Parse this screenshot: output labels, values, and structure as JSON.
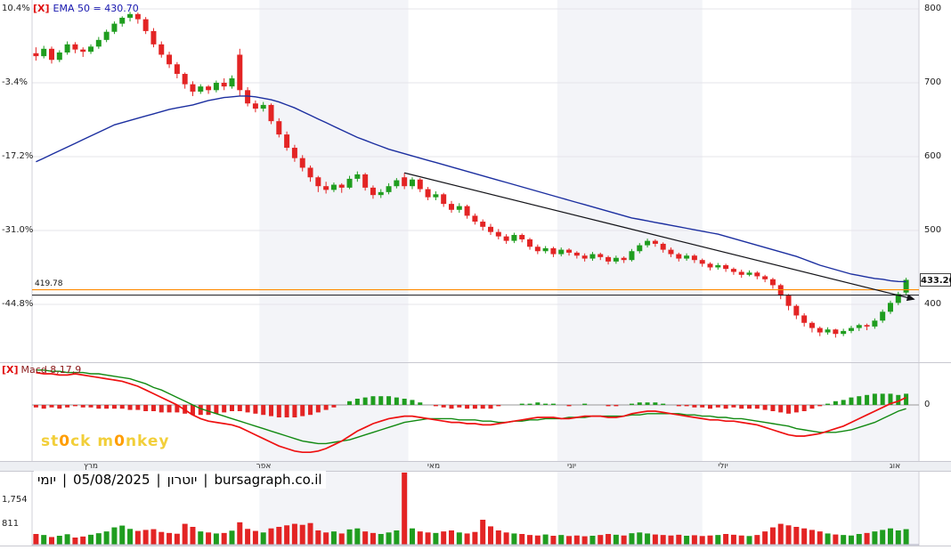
{
  "colors": {
    "up": "#1f9d1f",
    "down": "#e32424",
    "ema": "#1c2fa0",
    "macd_line": "#ee1111",
    "signal_line": "#128a12",
    "hist_pos": "#1f9d1f",
    "hist_neg": "#e32424",
    "orange_line": "#ff8a00",
    "trend_line": "#15151a",
    "stripe": "#f3f4f8",
    "grid": "#e4e4ea"
  },
  "legend": {
    "ema_close": "[X]",
    "macd_close": "[X]"
  },
  "watermark_parts": [
    "st",
    "0",
    "ck m",
    "0",
    "nkey"
  ],
  "info_bar": {
    "segments": [
      "יומי",
      "|",
      "05/08/2025",
      "|",
      "יוטרון",
      "|",
      "bursagraph.co.il"
    ]
  },
  "chart_data": {
    "type": "candlestick",
    "title": "EMA 50 = 430.70",
    "timeframe": "יומי",
    "date": "05/08/2025",
    "source": "bursagraph.co.il",
    "last_price": 433.2,
    "last_price_label": "433.20",
    "ema_label": "EMA 50 = 430.70",
    "ema50_value": 430.7,
    "orange_hline": 419.78,
    "orange_hline_label": "419.78",
    "black_hline": 412.5,
    "trendline": {
      "from_index": 47,
      "from_price": 578,
      "to_index": 112.0,
      "to_price": 407
    },
    "x_axis_months": [
      "מרץ",
      "אפר",
      "מאי",
      "יוני",
      "יולי",
      "אוג"
    ],
    "shaded_bands_idx": [
      [
        29,
        48
      ],
      [
        67,
        85.5
      ],
      [
        104.5,
        113.2
      ]
    ],
    "price_axis": {
      "ticks": [
        800,
        700,
        600,
        500,
        400
      ],
      "tick_labels": [
        "800",
        "700",
        "600",
        "500",
        "400"
      ],
      "pct_labels": [
        "10.4%",
        "-3.4%",
        "-17.2%",
        "-31.0%",
        "-44.8%"
      ],
      "base_close": 724.6
    },
    "candles": [
      [
        740,
        748,
        730,
        736
      ],
      [
        736,
        750,
        733,
        746
      ],
      [
        746,
        749,
        726,
        731
      ],
      [
        731,
        744,
        728,
        741
      ],
      [
        741,
        756,
        738,
        752
      ],
      [
        752,
        755,
        740,
        745
      ],
      [
        745,
        748,
        735,
        742
      ],
      [
        742,
        752,
        739,
        749
      ],
      [
        749,
        762,
        746,
        758
      ],
      [
        758,
        772,
        755,
        769
      ],
      [
        769,
        783,
        766,
        780
      ],
      [
        780,
        790,
        776,
        788
      ],
      [
        788,
        796,
        783,
        793
      ],
      [
        793,
        795,
        780,
        786
      ],
      [
        786,
        789,
        766,
        770
      ],
      [
        770,
        774,
        748,
        752
      ],
      [
        752,
        756,
        734,
        738
      ],
      [
        738,
        742,
        720,
        725
      ],
      [
        725,
        728,
        706,
        712
      ],
      [
        712,
        714,
        692,
        698
      ],
      [
        698,
        702,
        682,
        688
      ],
      [
        688,
        698,
        685,
        695
      ],
      [
        695,
        697,
        685,
        690
      ],
      [
        690,
        703,
        687,
        700
      ],
      [
        700,
        706,
        690,
        695
      ],
      [
        695,
        710,
        692,
        706
      ],
      [
        738,
        746,
        682,
        690
      ],
      [
        690,
        694,
        668,
        672
      ],
      [
        672,
        676,
        660,
        665
      ],
      [
        665,
        674,
        661,
        670
      ],
      [
        670,
        672,
        644,
        648
      ],
      [
        648,
        652,
        626,
        630
      ],
      [
        630,
        634,
        608,
        612
      ],
      [
        612,
        616,
        593,
        598
      ],
      [
        598,
        602,
        580,
        585
      ],
      [
        585,
        588,
        566,
        572
      ],
      [
        572,
        574,
        552,
        560
      ],
      [
        560,
        566,
        550,
        555
      ],
      [
        555,
        565,
        552,
        562
      ],
      [
        562,
        564,
        551,
        558
      ],
      [
        558,
        574,
        556,
        570
      ],
      [
        570,
        580,
        566,
        576
      ],
      [
        576,
        578,
        554,
        558
      ],
      [
        558,
        561,
        543,
        548
      ],
      [
        548,
        556,
        544,
        552
      ],
      [
        552,
        564,
        549,
        560
      ],
      [
        560,
        571,
        557,
        568
      ],
      [
        572,
        578,
        556,
        560
      ],
      [
        560,
        572,
        556,
        569
      ],
      [
        569,
        571,
        552,
        556
      ],
      [
        556,
        559,
        541,
        545
      ],
      [
        545,
        553,
        541,
        549
      ],
      [
        549,
        551,
        532,
        536
      ],
      [
        536,
        540,
        524,
        528
      ],
      [
        528,
        537,
        524,
        533
      ],
      [
        533,
        535,
        516,
        520
      ],
      [
        520,
        523,
        508,
        512
      ],
      [
        512,
        515,
        500,
        505
      ],
      [
        505,
        509,
        494,
        498
      ],
      [
        498,
        502,
        488,
        492
      ],
      [
        492,
        495,
        482,
        486
      ],
      [
        486,
        497,
        483,
        494
      ],
      [
        494,
        496,
        484,
        488
      ],
      [
        488,
        490,
        474,
        478
      ],
      [
        478,
        481,
        468,
        472
      ],
      [
        472,
        479,
        469,
        476
      ],
      [
        476,
        478,
        464,
        468
      ],
      [
        468,
        477,
        465,
        474
      ],
      [
        474,
        476,
        466,
        470
      ],
      [
        470,
        472,
        462,
        466
      ],
      [
        466,
        469,
        458,
        462
      ],
      [
        462,
        471,
        459,
        468
      ],
      [
        468,
        470,
        460,
        464
      ],
      [
        464,
        466,
        454,
        458
      ],
      [
        458,
        466,
        455,
        463
      ],
      [
        463,
        465,
        456,
        460
      ],
      [
        460,
        475,
        458,
        472
      ],
      [
        472,
        483,
        469,
        480
      ],
      [
        480,
        489,
        477,
        486
      ],
      [
        486,
        488,
        478,
        482
      ],
      [
        482,
        484,
        470,
        474
      ],
      [
        474,
        477,
        464,
        468
      ],
      [
        468,
        470,
        458,
        462
      ],
      [
        462,
        469,
        459,
        466
      ],
      [
        466,
        468,
        456,
        460
      ],
      [
        460,
        462,
        451,
        455
      ],
      [
        455,
        457,
        446,
        450
      ],
      [
        450,
        456,
        447,
        453
      ],
      [
        453,
        455,
        444,
        448
      ],
      [
        448,
        450,
        440,
        444
      ],
      [
        444,
        447,
        436,
        440
      ],
      [
        440,
        446,
        438,
        443
      ],
      [
        443,
        445,
        434,
        438
      ],
      [
        438,
        440,
        430,
        434
      ],
      [
        434,
        436,
        421,
        426
      ],
      [
        426,
        428,
        407,
        412
      ],
      [
        412,
        414,
        392,
        398
      ],
      [
        398,
        400,
        380,
        385
      ],
      [
        385,
        388,
        370,
        375
      ],
      [
        375,
        377,
        362,
        368
      ],
      [
        368,
        370,
        357,
        362
      ],
      [
        362,
        369,
        359,
        366
      ],
      [
        366,
        367,
        355,
        360
      ],
      [
        360,
        367,
        357,
        364
      ],
      [
        364,
        371,
        361,
        368
      ],
      [
        368,
        374,
        364,
        372
      ],
      [
        372,
        374,
        365,
        370
      ],
      [
        370,
        381,
        367,
        378
      ],
      [
        378,
        393,
        375,
        390
      ],
      [
        390,
        405,
        387,
        402
      ],
      [
        402,
        417,
        399,
        414
      ],
      [
        416,
        436,
        413,
        433.2
      ]
    ],
    "ema50": [
      593,
      598,
      603,
      608,
      613,
      618,
      623,
      628,
      633,
      638,
      643,
      646,
      649,
      652,
      655,
      658,
      661,
      664,
      666,
      668,
      670,
      673,
      676,
      678,
      680,
      681,
      682,
      682,
      681,
      679,
      677,
      674,
      670,
      666,
      661,
      656,
      651,
      646,
      641,
      636,
      631,
      626,
      622,
      618,
      614,
      610,
      607,
      604,
      601,
      598,
      595,
      592,
      589,
      586,
      583,
      580,
      577,
      574,
      571,
      568,
      565,
      562,
      559,
      556,
      553,
      550,
      547,
      544,
      541,
      538,
      535,
      532,
      529,
      526,
      523,
      520,
      517,
      515,
      513,
      511,
      509,
      507,
      505,
      503,
      501,
      499,
      497,
      495,
      492,
      489,
      486,
      483,
      480,
      477,
      474,
      471,
      468,
      465,
      461,
      457,
      453,
      450,
      447,
      444,
      441,
      439,
      437,
      435,
      434,
      432,
      431,
      430.7
    ],
    "macd": {
      "label": "Macd 8,17,9",
      "zero_label": "0",
      "histogram_rule": "macd_minus_signal",
      "macd_line": [
        26,
        25,
        25,
        24,
        24,
        25,
        24,
        23,
        22,
        21,
        20,
        19,
        17,
        15,
        12,
        9,
        6,
        3,
        0,
        -4,
        -8,
        -11,
        -13,
        -14,
        -15,
        -16,
        -18,
        -21,
        -24,
        -27,
        -30,
        -33,
        -35,
        -37,
        -38,
        -38,
        -37,
        -35,
        -32,
        -29,
        -25,
        -21,
        -18,
        -15,
        -13,
        -11,
        -10,
        -9,
        -9,
        -10,
        -11,
        -12,
        -13,
        -14,
        -14,
        -15,
        -15,
        -16,
        -16,
        -15,
        -14,
        -13,
        -12,
        -11,
        -10,
        -10,
        -10,
        -11,
        -11,
        -10,
        -9,
        -9,
        -9,
        -10,
        -10,
        -9,
        -7,
        -6,
        -5,
        -5,
        -6,
        -7,
        -8,
        -9,
        -10,
        -11,
        -12,
        -12,
        -13,
        -13,
        -14,
        -15,
        -16,
        -18,
        -20,
        -22,
        -24,
        -25,
        -25,
        -24,
        -23,
        -21,
        -19,
        -17,
        -14,
        -11,
        -8,
        -5,
        -2,
        1,
        3,
        6
      ],
      "signal_line": [
        28,
        28,
        27,
        27,
        26,
        26,
        26,
        25,
        25,
        24,
        23,
        22,
        21,
        19,
        17,
        14,
        12,
        9,
        6,
        3,
        0,
        -3,
        -5,
        -7,
        -9,
        -11,
        -13,
        -15,
        -17,
        -19,
        -21,
        -23,
        -25,
        -27,
        -29,
        -30,
        -31,
        -31,
        -30,
        -29,
        -28,
        -26,
        -24,
        -22,
        -20,
        -18,
        -16,
        -14,
        -13,
        -12,
        -11,
        -11,
        -11,
        -11,
        -12,
        -12,
        -12,
        -13,
        -13,
        -14,
        -14,
        -13,
        -13,
        -12,
        -12,
        -11,
        -11,
        -11,
        -10,
        -10,
        -10,
        -9,
        -9,
        -9,
        -9,
        -9,
        -8,
        -8,
        -7,
        -7,
        -7,
        -7,
        -7,
        -8,
        -8,
        -9,
        -9,
        -10,
        -10,
        -11,
        -11,
        -12,
        -13,
        -14,
        -15,
        -16,
        -17,
        -19,
        -20,
        -21,
        -22,
        -22,
        -22,
        -21,
        -20,
        -18,
        -16,
        -14,
        -11,
        -8,
        -5,
        -3
      ]
    },
    "volume": {
      "tick_values": [
        1754,
        811
      ],
      "tick_labels": [
        "1,754",
        "811"
      ],
      "values": [
        420,
        380,
        300,
        350,
        410,
        280,
        320,
        390,
        450,
        520,
        680,
        750,
        620,
        540,
        580,
        610,
        500,
        460,
        430,
        820,
        700,
        520,
        480,
        440,
        460,
        550,
        880,
        620,
        540,
        480,
        640,
        700,
        760,
        820,
        780,
        850,
        560,
        480,
        520,
        440,
        600,
        640,
        520,
        460,
        420,
        480,
        560,
        2850,
        640,
        520,
        480,
        460,
        520,
        560,
        480,
        440,
        500,
        980,
        720,
        560,
        480,
        440,
        420,
        380,
        360,
        400,
        350,
        380,
        340,
        360,
        330,
        350,
        380,
        420,
        390,
        360,
        450,
        480,
        440,
        400,
        380,
        360,
        390,
        350,
        370,
        340,
        360,
        380,
        420,
        390,
        360,
        340,
        380,
        520,
        680,
        820,
        760,
        700,
        640,
        580,
        520,
        440,
        400,
        380,
        360,
        420,
        460,
        520,
        580,
        640,
        560,
        610
      ]
    }
  }
}
